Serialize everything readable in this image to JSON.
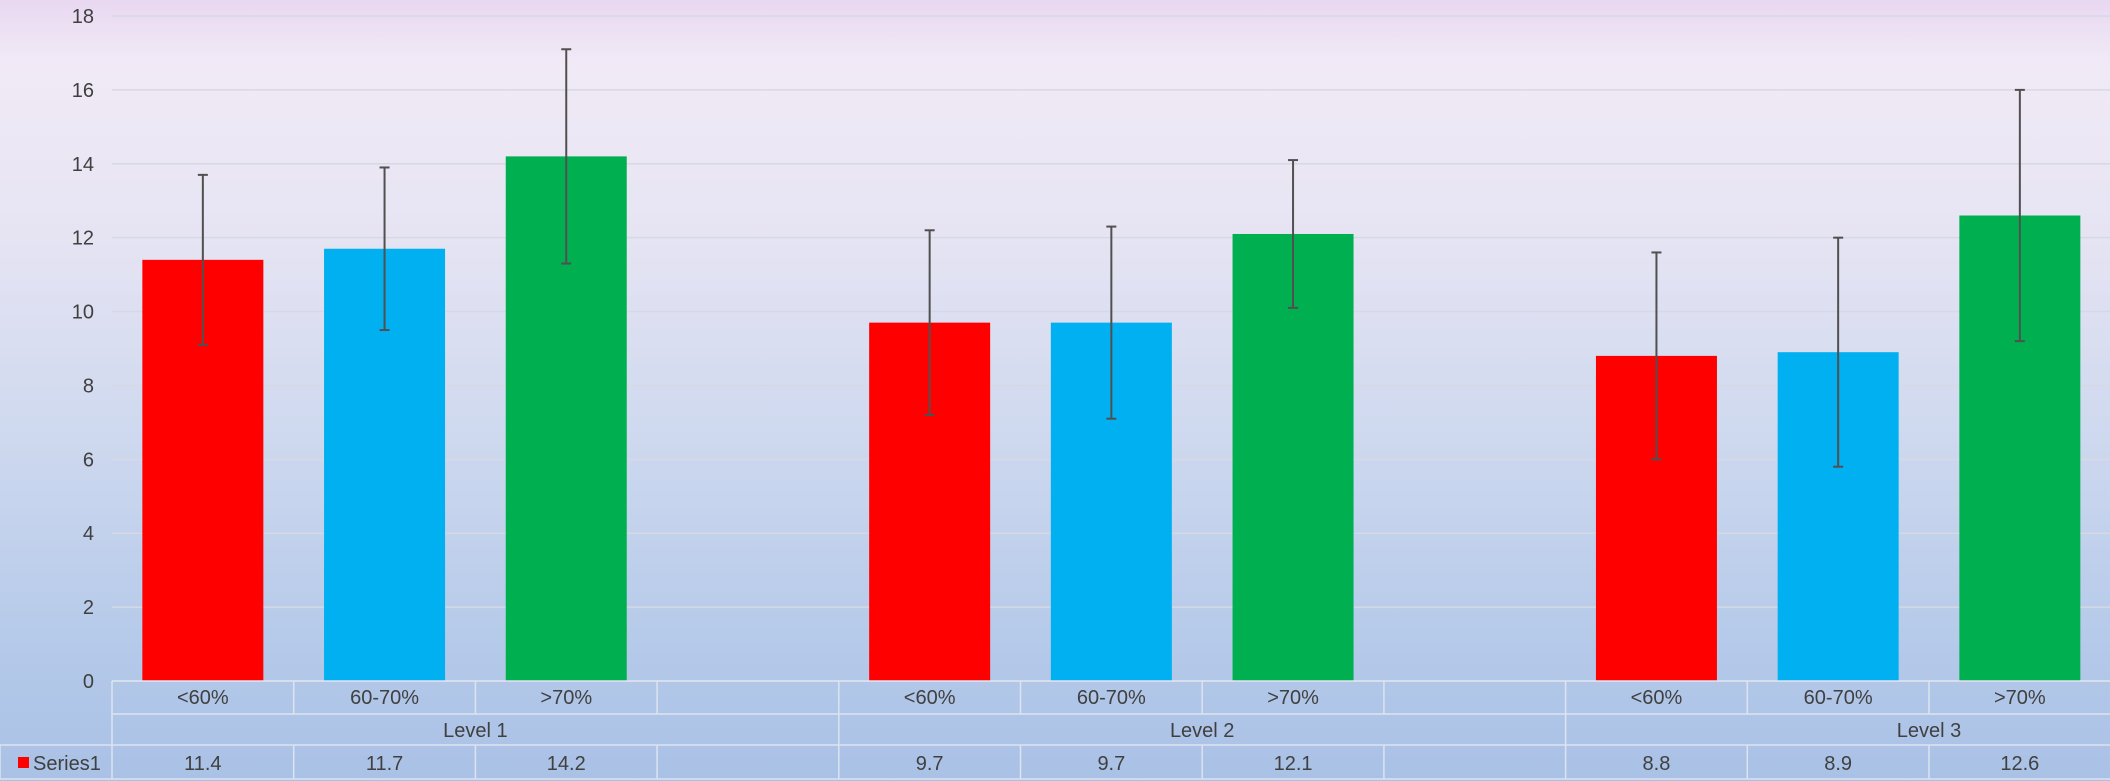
{
  "chart_data": {
    "type": "bar",
    "yaxis": {
      "min": 0,
      "max": 18,
      "step": 2,
      "ticks": [
        "0",
        "2",
        "4",
        "6",
        "8",
        "10",
        "12",
        "14",
        "16",
        "18"
      ]
    },
    "grid": true,
    "groups": [
      {
        "label": "Level 1",
        "categories": [
          "<60%",
          "60-70%",
          ">70%"
        ],
        "values": [
          11.4,
          11.7,
          14.2
        ],
        "labels": [
          "11.4",
          "11.7",
          "14.2"
        ],
        "error": [
          [
            9.1,
            13.7
          ],
          [
            9.5,
            13.9
          ],
          [
            11.3,
            17.1
          ]
        ]
      },
      {
        "label": "Level 2",
        "categories": [
          "<60%",
          "60-70%",
          ">70%"
        ],
        "values": [
          9.7,
          9.7,
          12.1
        ],
        "labels": [
          "9.7",
          "9.7",
          "12.1"
        ],
        "error": [
          [
            7.2,
            12.2
          ],
          [
            7.1,
            12.3
          ],
          [
            10.1,
            14.1
          ]
        ]
      },
      {
        "label": "Level 3",
        "categories": [
          "<60%",
          "60-70%",
          ">70%"
        ],
        "values": [
          8.8,
          8.9,
          12.6
        ],
        "labels": [
          "8.8",
          "8.9",
          "12.6"
        ],
        "error": [
          [
            6.0,
            11.6
          ],
          [
            5.8,
            12.0
          ],
          [
            9.2,
            16.0
          ]
        ]
      }
    ],
    "colors": [
      "#ff0000",
      "#00b0f0",
      "#00b050"
    ],
    "series_name": "Series1",
    "legend_color": "#ff0000"
  }
}
